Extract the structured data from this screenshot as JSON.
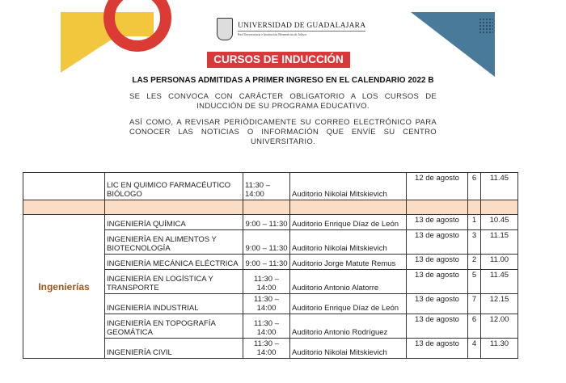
{
  "header": {
    "university": "UNIVERSIDAD DE GUADALAJARA",
    "subtitle": "Red Universitaria e Institución Benemérita de Jalisco",
    "banner": "CURSOS DE INDUCCIÓN",
    "title": "LAS PERSONAS ADMITIDAS A PRIMER INGRESO EN EL CALENDARIO 2022 B",
    "para1": "SE LES CONVOCA CON CARÁCTER OBLIGATORIO A LOS CURSOS DE INDUCCIÓN DE SU PROGRAMA EDUCATIVO.",
    "para2": "ASÍ COMO, A REVISAR PERIÓDICAMENTE SU CORREO ELECTRÓNICO PARA CONOCER LAS NOTICIAS O INFORMACIÓN QUE ENVÍE SU CENTRO UNIVERSITARIO."
  },
  "colors": {
    "banner": "#d8383a",
    "area": "#a0561a",
    "separator": "#fbdcc4"
  },
  "table": {
    "first_row": {
      "program": "LIC EN QUIMICO FARMACÉUTICO BIÓLOGO",
      "time": "11:30 – 14:00",
      "place": "Auditorio Nikolai Mitskievich",
      "date": "12 de agosto",
      "group": "6",
      "hour": "11.45"
    },
    "area": "Ingenierías",
    "rows": [
      {
        "program": "INGENIERÍA QUÍMICA",
        "time": "9:00 – 11:30",
        "place": "Auditorio Enrique Díaz de León",
        "date": "13 de agosto",
        "group": "1",
        "hour": "10.45"
      },
      {
        "program": "INGENIERÍA EN ALIMENTOS Y BIOTECNOLOGÍA",
        "time": "9:00 – 11:30",
        "place": "Auditorio Nikolai Mitskievich",
        "date": "13 de agosto",
        "group": "3",
        "hour": "11.15"
      },
      {
        "program": "INGENIERÍA MECÁNICA ELÉCTRICA",
        "time": "9:00 – 11:30",
        "place": "Auditorio Jorge Matute Remus",
        "date": "13 de agosto",
        "group": "2",
        "hour": "11.00"
      },
      {
        "program": "INGENIERÍA EN LOGÍSTICA Y TRANSPORTE",
        "time": "11:30 – 14:00",
        "place": "Auditorio Antonio Alatorre",
        "date": "13 de agosto",
        "group": "5",
        "hour": "11.45"
      },
      {
        "program": "INGENIERÍA INDUSTRIAL",
        "time": "11:30 – 14:00",
        "place": "Auditorio Enrique Díaz de León",
        "date": "13 de agosto",
        "group": "7",
        "hour": "12.15"
      },
      {
        "program": "INGENIERÍA EN TOPOGRAFÍA GEOMÁTICA",
        "time": "11:30 – 14:00",
        "place": "Auditorio Antonio Rodríguez",
        "date": "13 de agosto",
        "group": "6",
        "hour": "12.00"
      },
      {
        "program": "INGENIERÍA CIVIL",
        "time": "11:30 – 14:00",
        "place": "Auditorio Nikolai Mitskievich",
        "date": "13 de agosto",
        "group": "4",
        "hour": "11.30"
      }
    ]
  }
}
